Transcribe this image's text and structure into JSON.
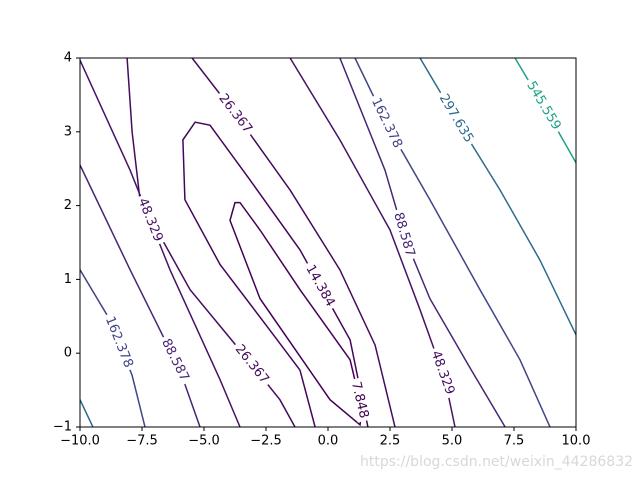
{
  "chart_data": {
    "type": "contour",
    "xlim": [
      -10,
      10
    ],
    "ylim": [
      -1,
      4
    ],
    "xticks": [
      {
        "value": -10,
        "label": "−10.0"
      },
      {
        "value": -7.5,
        "label": "−7.5"
      },
      {
        "value": -5,
        "label": "−5.0"
      },
      {
        "value": -2.5,
        "label": "−2.5"
      },
      {
        "value": 0,
        "label": "0.0"
      },
      {
        "value": 2.5,
        "label": "2.5"
      },
      {
        "value": 5,
        "label": "5.0"
      },
      {
        "value": 7.5,
        "label": "7.5"
      },
      {
        "value": 10,
        "label": "10.0"
      }
    ],
    "yticks": [
      {
        "value": -1,
        "label": "−1"
      },
      0,
      1,
      2,
      3,
      4
    ],
    "grid": false,
    "series": [
      {
        "name": "7.848",
        "color": "#440154",
        "closed": true,
        "pieces": [
          {
            "x": [
              -3.75,
              -3.95,
              -2.74,
              0.08,
              1.29,
              1.37,
              0.89,
              -1.13,
              -2.74,
              -3.55
            ],
            "y": [
              2.04,
              1.8,
              0.74,
              -0.63,
              -0.97,
              -0.77,
              -0.09,
              0.86,
              1.67,
              2.04
            ]
          }
        ]
      },
      {
        "name": "14.384",
        "color": "#450559",
        "pieces": [
          {
            "x": [
              -0.52,
              -1.13,
              -2.34,
              -4.35,
              -5.77,
              -5.85,
              -5.36,
              -4.76,
              -3.15,
              -1.13,
              0.89,
              1.61
            ],
            "y": [
              -1,
              -0.23,
              0.31,
              1.2,
              2.08,
              2.89,
              3.13,
              3.09,
              2.35,
              1.4,
              0.18,
              -1
            ]
          }
        ]
      },
      {
        "name": "26.367",
        "color": "#460b5e",
        "pieces": [
          {
            "x": [
              -5.48,
              -3.55,
              -1.53,
              0.48,
              1.9,
              2.7
            ],
            "y": [
              4,
              3.16,
              2.21,
              1.13,
              0.11,
              -1
            ]
          },
          {
            "x": [
              -8.1,
              -7.9,
              -7.58,
              -5.56,
              -3.2,
              -1.94,
              -1.33
            ],
            "y": [
              4,
              3.0,
              2.08,
              0.86,
              -0.1,
              -0.63,
              -1
            ]
          }
        ]
      },
      {
        "name": "48.329",
        "color": "#471365",
        "pieces": [
          {
            "x": [
              -10,
              -7.98,
              -6.37,
              -4.35,
              -3.55
            ],
            "y": [
              3.97,
              2.48,
              1.13,
              -0.36,
              -1
            ]
          },
          {
            "x": [
              -1.53,
              0.48,
              2.5,
              3.71,
              4.72,
              5.12
            ],
            "y": [
              4,
              2.89,
              1.67,
              0.59,
              -0.36,
              -1
            ]
          }
        ]
      },
      {
        "name": "88.587",
        "color": "#482576",
        "pieces": [
          {
            "x": [
              -10,
              -7.98,
              -5.97,
              -5.16
            ],
            "y": [
              2.55,
              1.13,
              -0.23,
              -1
            ]
          },
          {
            "x": [
              0.48,
              2.3,
              3.1,
              4.11,
              5.73,
              7.14
            ],
            "y": [
              4,
              2.48,
              1.56,
              0.74,
              -0.2,
              -1
            ]
          }
        ]
      },
      {
        "name": "162.378",
        "color": "#414487",
        "pieces": [
          {
            "x": [
              -10,
              -8.79,
              -7.9,
              -7.38
            ],
            "y": [
              1.13,
              0.45,
              -0.3,
              -1
            ]
          },
          {
            "x": [
              1.09,
              2.5,
              4.11,
              6.13,
              7.74,
              8.95
            ],
            "y": [
              4,
              3.02,
              2.08,
              0.86,
              -0.09,
              -1
            ]
          }
        ]
      },
      {
        "name": "297.635",
        "color": "#2f6b8e",
        "pieces": [
          {
            "x": [
              -10,
              -9.48
            ],
            "y": [
              -0.63,
              -1
            ]
          },
          {
            "x": [
              3.71,
              5.32,
              6.94,
              8.55,
              10
            ],
            "y": [
              4,
              3.09,
              2.21,
              1.26,
              0.25
            ]
          }
        ]
      },
      {
        "name": "545.559",
        "color": "#1fa187",
        "pieces": [
          {
            "x": [
              7.54,
              8.75,
              10
            ],
            "y": [
              4,
              3.32,
              2.58
            ]
          }
        ]
      }
    ],
    "watermark": "https://blog.csdn.net/weixin_44286832"
  }
}
